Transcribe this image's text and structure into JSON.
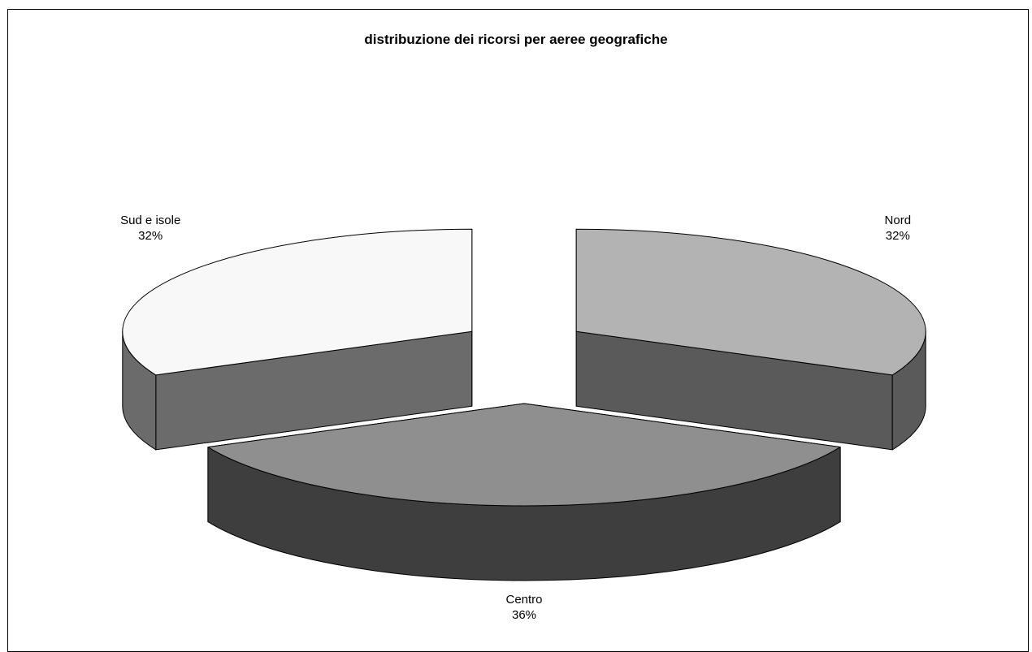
{
  "chart_data": {
    "type": "pie",
    "style": "3d-exploded",
    "title": "distribuzione dei ricorsi per aeree geografiche",
    "slices": [
      {
        "name": "Sud e isole",
        "value": 32,
        "label": "32%",
        "top_color": "#f8f8f8",
        "side_color": "#6b6b6b"
      },
      {
        "name": "Nord",
        "value": 32,
        "label": "32%",
        "top_color": "#b3b3b3",
        "side_color": "#5a5a5a"
      },
      {
        "name": "Centro",
        "value": 36,
        "label": "36%",
        "top_color": "#8f8f8f",
        "side_color": "#3e3e3e"
      }
    ]
  }
}
